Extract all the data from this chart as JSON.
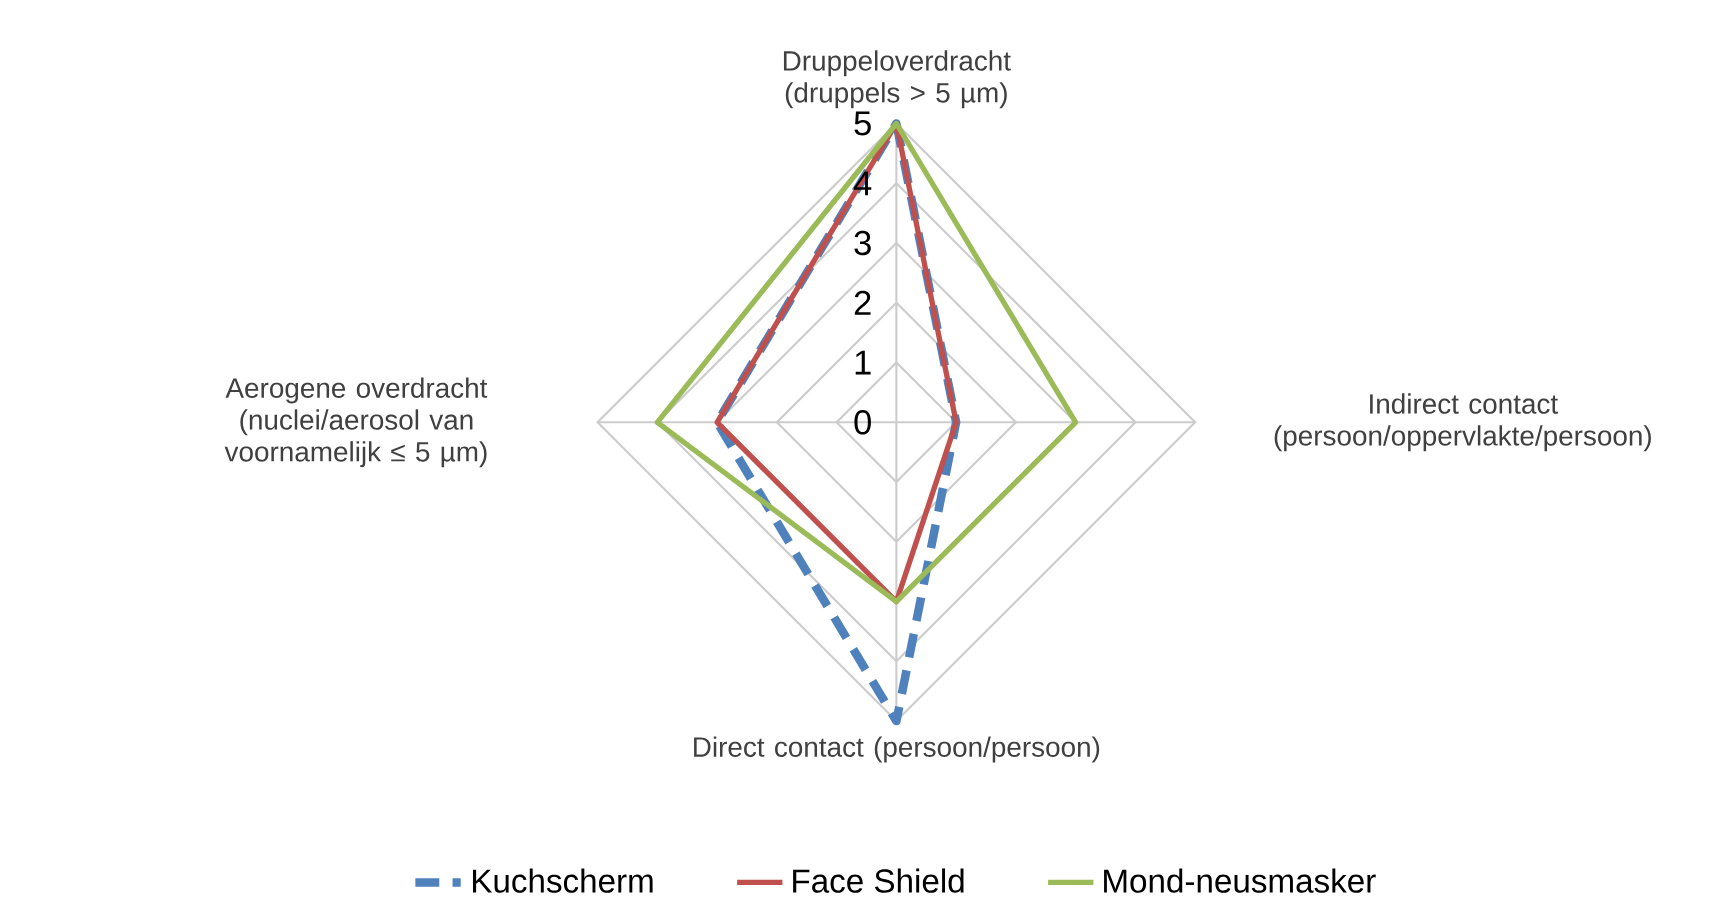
{
  "chart_data": {
    "type": "radar",
    "categories": [
      "Druppeloverdracht (druppels > 5 µm)",
      "Indirect contact (persoon/oppervlakte/persoon)",
      "Direct contact (persoon/persoon)",
      "Aerogene overdracht (nuclei/aerosol van voornamelijk ≤ 5 µm)"
    ],
    "series": [
      {
        "name": "Kuchscherm",
        "color": "#4f81bd",
        "line_style": "dashed",
        "values": [
          5,
          1,
          5,
          3
        ]
      },
      {
        "name": "Face Shield",
        "color": "#c0504d",
        "line_style": "solid",
        "values": [
          5,
          1,
          3,
          3
        ]
      },
      {
        "name": "Mond-neusmasker",
        "color": "#9bbb59",
        "line_style": "solid",
        "values": [
          5,
          3,
          3,
          4
        ]
      }
    ],
    "ylim": [
      0,
      5
    ],
    "yticks": [
      0,
      1,
      2,
      3,
      4,
      5
    ],
    "grid": true,
    "legend": "bottom",
    "marker": "none"
  }
}
